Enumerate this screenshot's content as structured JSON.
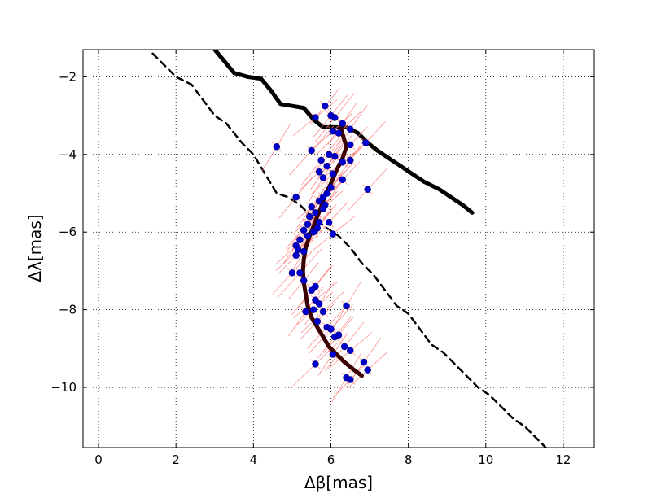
{
  "chart_data": {
    "type": "scatter",
    "title": "",
    "xlabel": "Δβ[mas]",
    "ylabel": "Δλ[mas]",
    "xlim": [
      -0.4,
      12.8
    ],
    "ylim": [
      -11.55,
      -1.3
    ],
    "xticks": [
      0,
      2,
      4,
      6,
      8,
      10,
      12
    ],
    "xtick_labels": [
      "0",
      "2",
      "4",
      "6",
      "8",
      "10",
      "12"
    ],
    "yticks": [
      -2,
      -4,
      -6,
      -8,
      -10
    ],
    "ytick_labels": [
      "−2",
      "−4",
      "−6",
      "−8",
      "−10"
    ],
    "grid": true,
    "grid_style": "dotted",
    "series": [
      {
        "kind": "curve",
        "style": "solid-thick",
        "color": "#000000",
        "x": [
          3.0,
          3.25,
          3.5,
          3.85,
          4.2,
          4.45,
          4.7,
          5.0,
          5.3,
          5.55,
          5.8,
          6.1,
          6.4,
          6.7,
          6.95,
          7.2,
          7.5,
          7.8,
          8.1,
          8.4,
          8.8,
          9.1,
          9.4,
          9.65
        ],
        "y": [
          -1.3,
          -1.6,
          -1.9,
          -2.0,
          -2.05,
          -2.35,
          -2.7,
          -2.75,
          -2.8,
          -3.1,
          -3.3,
          -3.3,
          -3.3,
          -3.45,
          -3.7,
          -3.9,
          -4.1,
          -4.3,
          -4.5,
          -4.7,
          -4.9,
          -5.1,
          -5.3,
          -5.5
        ]
      },
      {
        "kind": "curve",
        "style": "dashed",
        "color": "#000000",
        "x": [
          1.4,
          1.7,
          2.0,
          2.4,
          2.7,
          3.0,
          3.3,
          3.7,
          4.0,
          4.3,
          4.6,
          4.9,
          5.2,
          5.5,
          5.9,
          6.2,
          6.5,
          6.8,
          7.1,
          7.4,
          7.7,
          8.0,
          8.3,
          8.6,
          8.9,
          9.2,
          9.5,
          9.8,
          10.1,
          10.4,
          10.7,
          11.0,
          11.3,
          11.6
        ],
        "y": [
          -1.4,
          -1.7,
          -2.0,
          -2.2,
          -2.6,
          -3.0,
          -3.2,
          -3.7,
          -4.0,
          -4.5,
          -5.0,
          -5.1,
          -5.3,
          -5.6,
          -5.9,
          -6.1,
          -6.4,
          -6.8,
          -7.1,
          -7.5,
          -7.9,
          -8.1,
          -8.5,
          -8.9,
          -9.1,
          -9.4,
          -9.7,
          -10.0,
          -10.2,
          -10.5,
          -10.8,
          -11.0,
          -11.3,
          -11.6
        ]
      },
      {
        "kind": "track",
        "style": "solid-thick",
        "color": "#3a0000",
        "x": [
          6.25,
          6.4,
          6.3,
          6.15,
          6.0,
          5.85,
          5.75,
          5.65,
          5.55,
          5.45,
          5.35,
          5.3,
          5.28,
          5.3,
          5.35,
          5.4,
          5.5,
          5.65,
          5.8,
          5.95,
          6.15,
          6.35,
          6.6,
          6.8
        ],
        "y": [
          -3.3,
          -3.8,
          -4.1,
          -4.4,
          -4.75,
          -5.05,
          -5.35,
          -5.6,
          -5.85,
          -6.1,
          -6.4,
          -6.7,
          -7.0,
          -7.3,
          -7.6,
          -7.9,
          -8.2,
          -8.45,
          -8.7,
          -8.95,
          -9.15,
          -9.35,
          -9.55,
          -9.7
        ]
      },
      {
        "kind": "points",
        "color": "#0000cc",
        "errorbar_color": "#ff8080",
        "x": [
          5.85,
          6.0,
          6.1,
          5.6,
          6.3,
          6.5,
          6.05,
          6.2,
          4.6,
          6.5,
          6.9,
          5.5,
          5.95,
          6.1,
          5.75,
          6.3,
          6.5,
          5.9,
          5.7,
          6.05,
          5.8,
          6.3,
          6.95,
          6.0,
          5.9,
          5.1,
          5.8,
          5.7,
          5.5,
          5.85,
          5.8,
          5.6,
          5.45,
          5.7,
          5.95,
          5.4,
          5.65,
          5.3,
          5.55,
          6.05,
          5.4,
          5.2,
          5.1,
          5.15,
          5.3,
          5.1,
          5.0,
          5.2,
          5.3,
          5.6,
          5.5,
          5.6,
          5.7,
          5.35,
          5.55,
          5.8,
          6.4,
          5.65,
          5.9,
          6.0,
          6.2,
          6.1,
          6.35,
          6.5,
          6.05,
          6.85,
          6.95,
          5.6,
          6.4,
          6.5
        ],
        "y": [
          -2.75,
          -3.0,
          -3.05,
          -3.05,
          -3.2,
          -3.35,
          -3.4,
          -3.45,
          -3.8,
          -3.75,
          -3.7,
          -3.9,
          -4.0,
          -4.05,
          -4.15,
          -4.2,
          -4.15,
          -4.3,
          -4.45,
          -4.5,
          -4.6,
          -4.65,
          -4.9,
          -4.85,
          -5.0,
          -5.1,
          -5.1,
          -5.2,
          -5.35,
          -5.3,
          -5.4,
          -5.5,
          -5.6,
          -5.75,
          -5.75,
          -5.8,
          -5.9,
          -5.95,
          -6.0,
          -6.05,
          -6.1,
          -6.2,
          -6.35,
          -6.45,
          -6.5,
          -6.6,
          -7.05,
          -7.05,
          -7.25,
          -7.4,
          -7.5,
          -7.75,
          -7.85,
          -8.05,
          -8.0,
          -8.05,
          -7.9,
          -8.3,
          -8.45,
          -8.5,
          -8.65,
          -8.7,
          -8.95,
          -9.05,
          -9.15,
          -9.35,
          -9.55,
          -9.4,
          -9.75,
          -9.8
        ]
      }
    ]
  }
}
